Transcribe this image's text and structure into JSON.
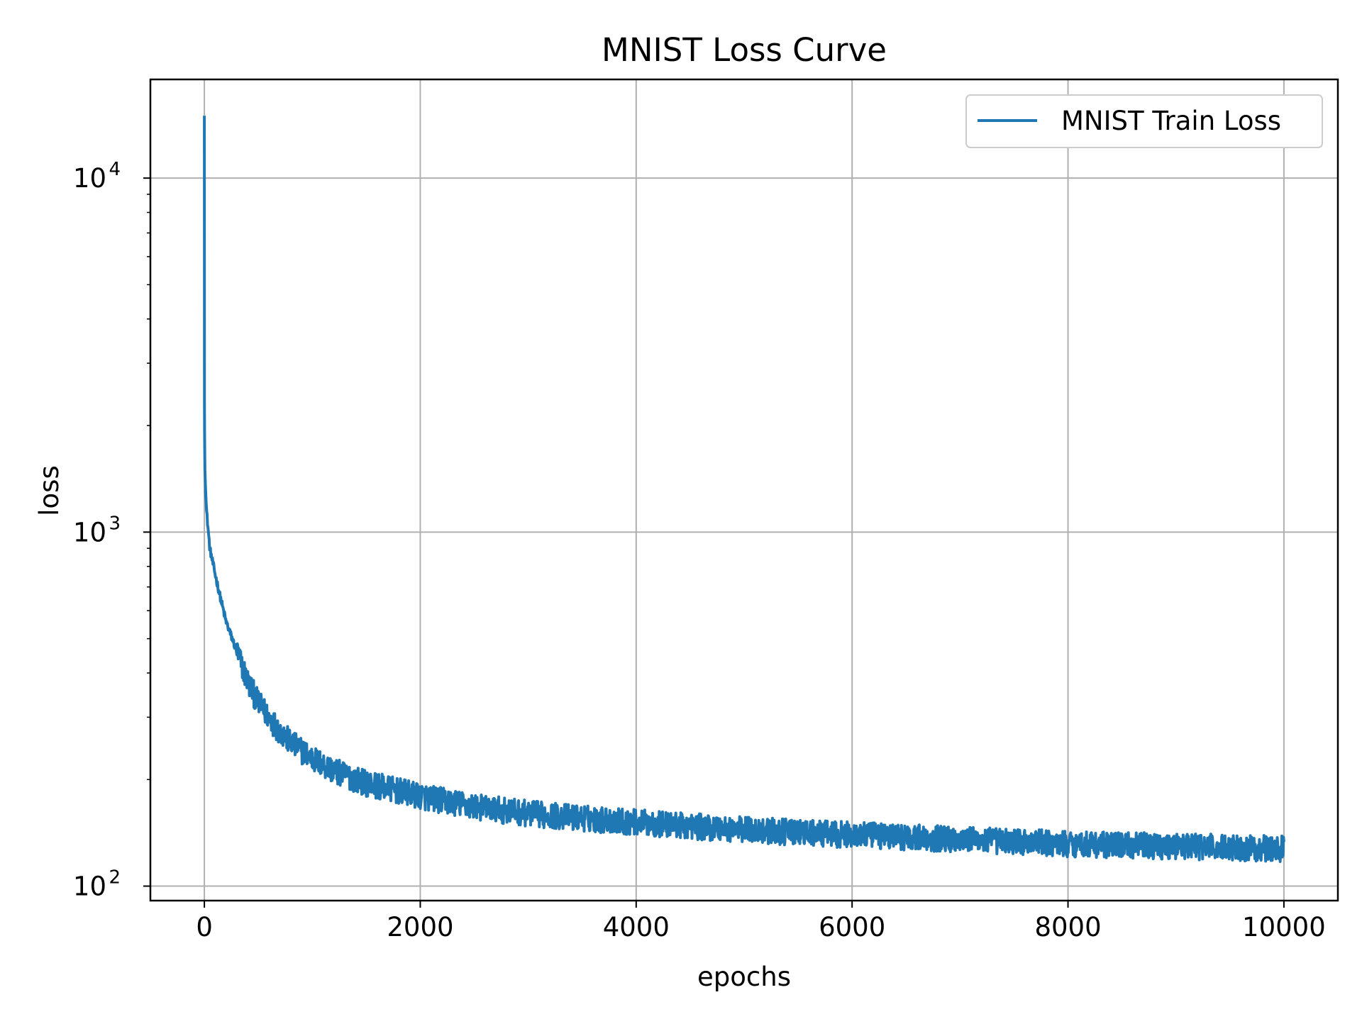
{
  "chart_data": {
    "type": "line",
    "title": "MNIST Loss Curve",
    "xlabel": "epochs",
    "ylabel": "loss",
    "xlim": [
      -500,
      10500
    ],
    "ylim": [
      91,
      19000
    ],
    "yscale": "log",
    "grid": true,
    "legend_position": "top-right",
    "x_ticks": [
      {
        "value": 0,
        "label": "0"
      },
      {
        "value": 2000,
        "label": "2000"
      },
      {
        "value": 4000,
        "label": "4000"
      },
      {
        "value": 6000,
        "label": "6000"
      },
      {
        "value": 8000,
        "label": "8000"
      },
      {
        "value": 10000,
        "label": "10000"
      }
    ],
    "y_ticks": [
      {
        "value": 100,
        "base": "10",
        "exp": "2"
      },
      {
        "value": 1000,
        "base": "10",
        "exp": "3"
      },
      {
        "value": 10000,
        "base": "10",
        "exp": "4"
      }
    ],
    "series": [
      {
        "name": "MNIST Train Loss",
        "color": "#1f77b4",
        "x": [
          0,
          1,
          2,
          5,
          10,
          20,
          50,
          100,
          150,
          200,
          300,
          400,
          500,
          600,
          700,
          800,
          1000,
          1200,
          1500,
          1800,
          2000,
          2500,
          3000,
          3500,
          4000,
          4500,
          5000,
          5500,
          6000,
          6500,
          7000,
          7500,
          8000,
          8500,
          9000,
          9500,
          10000
        ],
        "y": [
          15000,
          2300,
          1900,
          1500,
          1350,
          1150,
          900,
          760,
          650,
          560,
          460,
          380,
          330,
          300,
          275,
          255,
          230,
          212,
          196,
          186,
          180,
          168,
          161,
          156,
          152,
          148,
          145,
          142,
          140,
          138,
          136,
          134,
          132,
          131,
          130,
          129,
          128
        ]
      }
    ]
  }
}
